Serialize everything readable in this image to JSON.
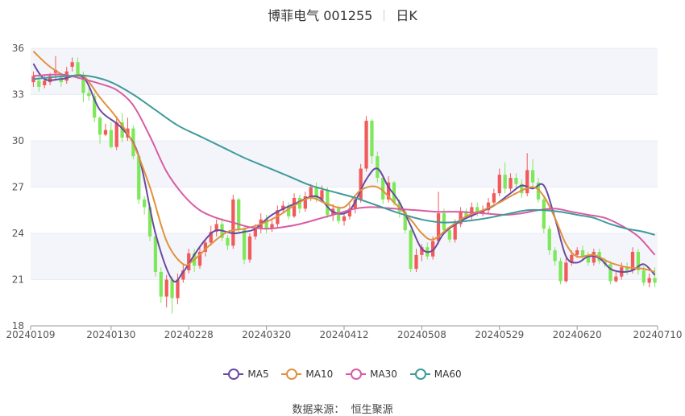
{
  "title": {
    "name": "博菲电气 001255",
    "period": "日K"
  },
  "source": {
    "label": "数据来源：",
    "value": "恒生聚源"
  },
  "colors": {
    "up": "#f05a5a",
    "down": "#7ee85a",
    "ma5": "#6a4aa0",
    "ma10": "#e0913f",
    "ma30": "#d85ba2",
    "ma60": "#3f9a9a",
    "grid": "#e8ecf4",
    "band": "#f4f5fb"
  },
  "chart_data": {
    "type": "candlestick",
    "title": "博菲电气 001255",
    "period": "日K",
    "xlabel": "",
    "ylabel": "",
    "ylim": [
      18,
      36
    ],
    "yticks": [
      18,
      21,
      24,
      27,
      30,
      33,
      36
    ],
    "xticks": [
      "20240109",
      "20240130",
      "20240228",
      "20240320",
      "20240412",
      "20240508",
      "20240529",
      "20240620",
      "20240710"
    ],
    "xtick_indices": [
      0,
      14,
      28,
      42,
      56,
      70,
      84,
      98,
      112
    ],
    "num_days": 113,
    "legend": [
      "MA5",
      "MA10",
      "MA30",
      "MA60"
    ],
    "legend_position": "bottom-center",
    "candles_ohlc": [
      [
        33.8,
        34.2,
        33.5,
        34.5
      ],
      [
        33.9,
        33.5,
        33.2,
        34.3
      ],
      [
        33.6,
        33.9,
        33.4,
        34.2
      ],
      [
        33.8,
        34.2,
        33.6,
        34.4
      ],
      [
        34.4,
        34.6,
        34.0,
        35.5
      ],
      [
        34.1,
        33.8,
        33.5,
        34.3
      ],
      [
        33.9,
        34.5,
        33.7,
        34.8
      ],
      [
        34.8,
        35.1,
        34.5,
        35.4
      ],
      [
        35.1,
        34.3,
        34.0,
        35.4
      ],
      [
        34.3,
        33.1,
        32.5,
        34.5
      ],
      [
        33.1,
        32.9,
        32.6,
        33.4
      ],
      [
        32.9,
        31.5,
        31.2,
        33.1
      ],
      [
        31.5,
        30.4,
        29.8,
        31.6
      ],
      [
        30.4,
        30.7,
        30.3,
        31.1
      ],
      [
        30.7,
        29.6,
        29.5,
        31.2
      ],
      [
        29.6,
        31.2,
        29.4,
        31.6
      ],
      [
        31.2,
        30.2,
        29.9,
        31.8
      ],
      [
        30.2,
        30.8,
        30.0,
        31.5
      ],
      [
        30.8,
        29.0,
        28.8,
        31.0
      ],
      [
        29.0,
        26.2,
        25.9,
        29.1
      ],
      [
        26.2,
        25.7,
        25.2,
        26.4
      ],
      [
        25.7,
        23.8,
        23.5,
        25.9
      ],
      [
        23.8,
        21.5,
        21.2,
        24.0
      ],
      [
        21.5,
        19.9,
        19.5,
        21.8
      ],
      [
        19.9,
        21.0,
        19.2,
        21.3
      ],
      [
        21.0,
        19.8,
        18.8,
        21.2
      ],
      [
        19.8,
        21.0,
        19.4,
        21.4
      ],
      [
        21.0,
        21.6,
        20.8,
        22.0
      ],
      [
        21.6,
        22.7,
        21.4,
        23.0
      ],
      [
        22.7,
        21.9,
        21.5,
        23.0
      ],
      [
        21.9,
        22.8,
        21.7,
        23.1
      ],
      [
        22.8,
        23.4,
        22.5,
        23.6
      ],
      [
        23.4,
        24.1,
        23.2,
        24.5
      ],
      [
        24.1,
        24.6,
        23.8,
        24.9
      ],
      [
        24.6,
        23.7,
        23.5,
        25.0
      ],
      [
        23.7,
        23.2,
        22.9,
        23.9
      ],
      [
        23.2,
        26.2,
        23.0,
        26.5
      ],
      [
        26.2,
        24.3,
        24.0,
        26.3
      ],
      [
        24.3,
        22.3,
        22.0,
        24.4
      ],
      [
        22.3,
        23.8,
        22.1,
        24.0
      ],
      [
        23.8,
        24.3,
        23.6,
        24.6
      ],
      [
        24.3,
        24.9,
        24.0,
        25.3
      ],
      [
        24.9,
        24.3,
        24.0,
        25.2
      ],
      [
        24.3,
        24.6,
        24.1,
        24.9
      ],
      [
        24.6,
        25.5,
        24.4,
        25.8
      ],
      [
        25.5,
        25.8,
        25.3,
        26.1
      ],
      [
        25.8,
        25.1,
        24.9,
        26.0
      ],
      [
        25.1,
        26.3,
        25.0,
        26.6
      ],
      [
        26.3,
        25.6,
        25.3,
        26.5
      ],
      [
        25.6,
        26.4,
        25.4,
        26.7
      ],
      [
        26.4,
        27.0,
        26.1,
        27.2
      ],
      [
        27.0,
        26.2,
        26.0,
        27.3
      ],
      [
        26.2,
        26.8,
        26.0,
        27.1
      ],
      [
        26.8,
        25.2,
        25.0,
        27.0
      ],
      [
        25.2,
        25.6,
        24.8,
        25.9
      ],
      [
        25.6,
        24.8,
        24.6,
        25.8
      ],
      [
        24.8,
        25.1,
        24.5,
        25.4
      ],
      [
        25.1,
        25.6,
        24.9,
        25.9
      ],
      [
        25.6,
        26.2,
        25.3,
        26.5
      ],
      [
        26.2,
        28.2,
        26.0,
        28.5
      ],
      [
        28.2,
        31.3,
        28.0,
        31.6
      ],
      [
        31.3,
        29.0,
        28.5,
        31.4
      ],
      [
        29.0,
        27.6,
        27.3,
        29.3
      ],
      [
        27.6,
        26.2,
        25.9,
        27.8
      ],
      [
        26.2,
        27.3,
        26.0,
        27.7
      ],
      [
        27.3,
        26.0,
        25.8,
        27.4
      ],
      [
        26.0,
        25.4,
        25.0,
        26.2
      ],
      [
        25.4,
        24.2,
        24.0,
        25.6
      ],
      [
        24.2,
        21.7,
        21.5,
        24.3
      ],
      [
        21.7,
        22.6,
        21.5,
        23.0
      ],
      [
        22.6,
        23.1,
        22.2,
        23.3
      ],
      [
        23.1,
        22.5,
        22.3,
        23.4
      ],
      [
        22.5,
        23.5,
        22.3,
        23.8
      ],
      [
        23.5,
        25.3,
        23.3,
        26.7
      ],
      [
        25.3,
        24.2,
        24.0,
        25.6
      ],
      [
        24.2,
        23.6,
        23.4,
        24.4
      ],
      [
        23.6,
        24.6,
        23.4,
        24.9
      ],
      [
        24.6,
        25.4,
        24.4,
        25.7
      ],
      [
        25.4,
        25.1,
        24.9,
        25.6
      ],
      [
        25.1,
        25.7,
        24.9,
        26.0
      ],
      [
        25.7,
        25.3,
        25.1,
        26.0
      ],
      [
        25.3,
        25.5,
        25.1,
        25.8
      ],
      [
        25.5,
        26.0,
        25.3,
        26.3
      ],
      [
        26.0,
        26.6,
        25.8,
        26.9
      ],
      [
        26.6,
        27.8,
        26.4,
        28.2
      ],
      [
        27.8,
        26.9,
        26.6,
        28.6
      ],
      [
        26.9,
        27.6,
        26.7,
        27.9
      ],
      [
        27.6,
        27.2,
        26.9,
        27.9
      ],
      [
        27.2,
        26.6,
        26.3,
        27.5
      ],
      [
        26.6,
        28.1,
        26.4,
        29.2
      ],
      [
        28.1,
        27.3,
        27.0,
        28.8
      ],
      [
        27.3,
        26.2,
        26.0,
        27.6
      ],
      [
        26.2,
        24.3,
        24.0,
        26.4
      ],
      [
        24.3,
        22.9,
        22.6,
        24.5
      ],
      [
        22.9,
        22.2,
        21.9,
        23.1
      ],
      [
        22.2,
        20.9,
        20.7,
        22.4
      ],
      [
        20.9,
        22.1,
        20.8,
        22.4
      ],
      [
        22.1,
        22.6,
        21.9,
        22.9
      ],
      [
        22.6,
        22.9,
        22.4,
        23.1
      ],
      [
        22.9,
        22.5,
        22.2,
        23.2
      ],
      [
        22.5,
        22.1,
        21.9,
        22.8
      ],
      [
        22.1,
        22.8,
        21.9,
        23.0
      ],
      [
        22.8,
        22.2,
        22.0,
        23.0
      ],
      [
        22.2,
        22.0,
        21.8,
        22.4
      ],
      [
        22.0,
        20.9,
        20.7,
        22.2
      ],
      [
        20.9,
        21.2,
        20.8,
        21.5
      ],
      [
        21.2,
        21.8,
        21.0,
        22.1
      ],
      [
        21.8,
        21.6,
        21.3,
        22.1
      ],
      [
        21.6,
        22.8,
        21.4,
        23.1
      ],
      [
        22.8,
        21.6,
        21.3,
        23.0
      ],
      [
        21.6,
        20.8,
        20.6,
        21.9
      ],
      [
        20.8,
        21.1,
        20.5,
        21.4
      ],
      [
        21.1,
        20.8,
        20.5,
        21.8
      ]
    ],
    "ma_series": [
      {
        "name": "MA5",
        "points": [
          [
            0,
            35.0
          ],
          [
            2,
            34.0
          ],
          [
            5,
            34.0
          ],
          [
            9,
            34.1
          ],
          [
            12,
            32.0
          ],
          [
            16,
            30.8
          ],
          [
            19,
            29.0
          ],
          [
            22,
            24.0
          ],
          [
            25,
            21.0
          ],
          [
            27,
            21.5
          ],
          [
            29,
            22.6
          ],
          [
            31,
            23.6
          ],
          [
            33,
            24.2
          ],
          [
            36,
            24.0
          ],
          [
            38,
            24.1
          ],
          [
            40,
            24.3
          ],
          [
            43,
            25.2
          ],
          [
            47,
            25.9
          ],
          [
            51,
            26.4
          ],
          [
            54,
            25.4
          ],
          [
            57,
            25.5
          ],
          [
            60,
            27.5
          ],
          [
            62,
            28.2
          ],
          [
            64,
            27.0
          ],
          [
            66,
            26.0
          ],
          [
            68,
            24.5
          ],
          [
            70,
            23.0
          ],
          [
            72,
            22.9
          ],
          [
            74,
            24.0
          ],
          [
            77,
            24.8
          ],
          [
            80,
            25.3
          ],
          [
            83,
            25.8
          ],
          [
            86,
            26.6
          ],
          [
            88,
            27.1
          ],
          [
            90,
            26.9
          ],
          [
            92,
            27.1
          ],
          [
            94,
            25.0
          ],
          [
            96,
            22.5
          ],
          [
            98,
            22.1
          ],
          [
            100,
            22.5
          ],
          [
            102,
            22.4
          ],
          [
            104,
            21.7
          ],
          [
            106,
            21.5
          ],
          [
            108,
            21.6
          ],
          [
            110,
            22.0
          ],
          [
            112,
            21.3
          ]
        ]
      },
      {
        "name": "MA10",
        "points": [
          [
            0,
            35.8
          ],
          [
            3,
            34.8
          ],
          [
            6,
            34.2
          ],
          [
            9,
            34.2
          ],
          [
            12,
            32.8
          ],
          [
            15,
            31.5
          ],
          [
            18,
            29.8
          ],
          [
            21,
            27.0
          ],
          [
            24,
            23.5
          ],
          [
            27,
            22.0
          ],
          [
            29,
            22.3
          ],
          [
            32,
            23.3
          ],
          [
            35,
            24.1
          ],
          [
            38,
            24.3
          ],
          [
            41,
            24.6
          ],
          [
            44,
            25.1
          ],
          [
            47,
            25.8
          ],
          [
            50,
            26.3
          ],
          [
            53,
            25.9
          ],
          [
            56,
            25.7
          ],
          [
            59,
            26.8
          ],
          [
            62,
            27.0
          ],
          [
            65,
            26.0
          ],
          [
            68,
            24.9
          ],
          [
            70,
            24.0
          ],
          [
            72,
            23.6
          ],
          [
            75,
            24.4
          ],
          [
            78,
            25.1
          ],
          [
            81,
            25.5
          ],
          [
            84,
            26.0
          ],
          [
            87,
            26.6
          ],
          [
            90,
            27.0
          ],
          [
            92,
            26.4
          ],
          [
            94,
            25.0
          ],
          [
            96,
            23.3
          ],
          [
            98,
            22.5
          ],
          [
            101,
            22.6
          ],
          [
            104,
            22.1
          ],
          [
            107,
            21.8
          ],
          [
            110,
            21.7
          ],
          [
            112,
            21.5
          ]
        ]
      },
      {
        "name": "MA30",
        "points": [
          [
            0,
            34.2
          ],
          [
            5,
            34.3
          ],
          [
            9,
            34.0
          ],
          [
            12,
            33.7
          ],
          [
            15,
            33.3
          ],
          [
            18,
            32.3
          ],
          [
            21,
            30.3
          ],
          [
            24,
            28.0
          ],
          [
            27,
            26.5
          ],
          [
            30,
            25.5
          ],
          [
            33,
            25.0
          ],
          [
            36,
            24.7
          ],
          [
            39,
            24.4
          ],
          [
            42,
            24.3
          ],
          [
            45,
            24.4
          ],
          [
            48,
            24.6
          ],
          [
            52,
            25.0
          ],
          [
            55,
            25.3
          ],
          [
            58,
            25.6
          ],
          [
            61,
            25.7
          ],
          [
            65,
            25.6
          ],
          [
            69,
            25.5
          ],
          [
            73,
            25.4
          ],
          [
            77,
            25.4
          ],
          [
            81,
            25.3
          ],
          [
            85,
            25.2
          ],
          [
            88,
            25.3
          ],
          [
            91,
            25.5
          ],
          [
            94,
            25.6
          ],
          [
            97,
            25.4
          ],
          [
            100,
            25.2
          ],
          [
            103,
            25.0
          ],
          [
            106,
            24.5
          ],
          [
            109,
            23.8
          ],
          [
            112,
            22.6
          ]
        ]
      },
      {
        "name": "MA60",
        "points": [
          [
            0,
            34.0
          ],
          [
            6,
            34.2
          ],
          [
            10,
            34.2
          ],
          [
            14,
            33.8
          ],
          [
            18,
            33.0
          ],
          [
            22,
            32.0
          ],
          [
            26,
            31.0
          ],
          [
            30,
            30.3
          ],
          [
            34,
            29.6
          ],
          [
            38,
            28.9
          ],
          [
            42,
            28.3
          ],
          [
            46,
            27.7
          ],
          [
            50,
            27.1
          ],
          [
            54,
            26.7
          ],
          [
            58,
            26.3
          ],
          [
            62,
            25.8
          ],
          [
            66,
            25.3
          ],
          [
            70,
            24.9
          ],
          [
            74,
            24.7
          ],
          [
            78,
            24.8
          ],
          [
            82,
            25.0
          ],
          [
            86,
            25.3
          ],
          [
            89,
            25.5
          ],
          [
            92,
            25.5
          ],
          [
            95,
            25.4
          ],
          [
            98,
            25.2
          ],
          [
            101,
            25.0
          ],
          [
            104,
            24.6
          ],
          [
            107,
            24.3
          ],
          [
            110,
            24.1
          ],
          [
            112,
            23.9
          ]
        ]
      }
    ]
  }
}
